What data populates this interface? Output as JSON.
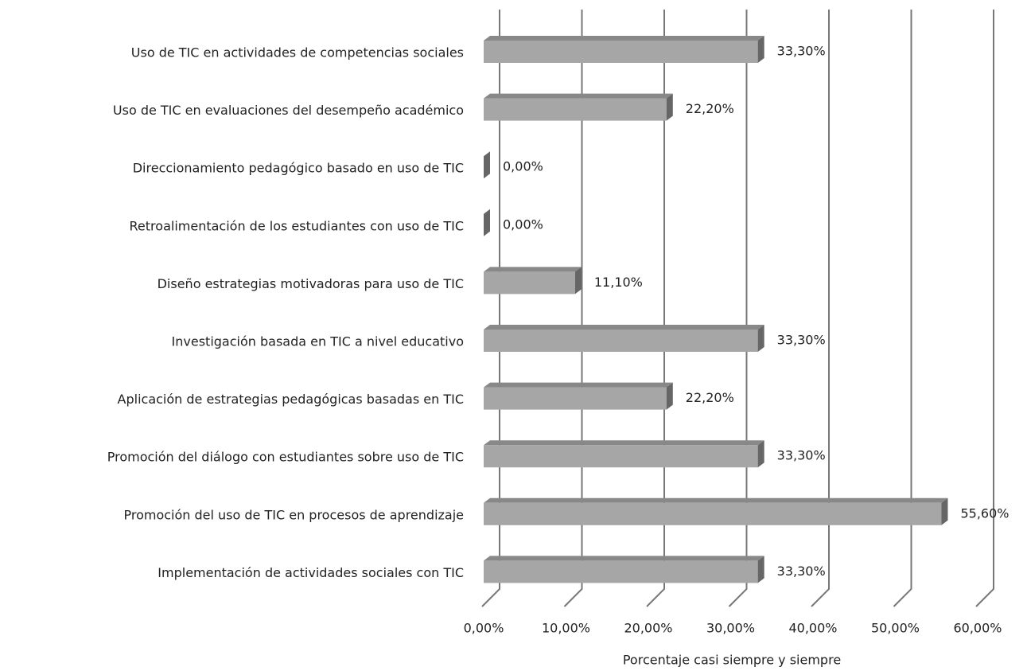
{
  "chart_data": {
    "type": "bar",
    "orientation": "horizontal",
    "categories": [
      "Uso de TIC en actividades de competencias sociales",
      "Uso de TIC en evaluaciones del desempeño académico",
      "Direccionamiento pedagógico basado en uso de TIC",
      "Retroalimentación de los estudiantes con uso de TIC",
      "Diseño estrategias motivadoras para uso de TIC",
      "Investigación basada en TIC a nivel educativo",
      "Aplicación de estrategias pedagógicas basadas en TIC",
      "Promoción del diálogo con estudiantes sobre uso de TIC",
      "Promoción del uso de TIC en procesos de aprendizaje",
      "Implementación de actividades sociales con TIC"
    ],
    "values": [
      33.3,
      22.2,
      0,
      0,
      11.1,
      33.3,
      22.2,
      33.3,
      55.6,
      33.3
    ],
    "value_labels": [
      "33,30%",
      "22,20%",
      "0,00%",
      "0,00%",
      "11,10%",
      "33,30%",
      "22,20%",
      "33,30%",
      "55,60%",
      "33,30%"
    ],
    "color": "#a6a6a6",
    "xlim": [
      0,
      60
    ],
    "xticks": [
      {
        "value": 0,
        "label": "0,00%"
      },
      {
        "value": 10,
        "label": "10,00%"
      },
      {
        "value": 20,
        "label": "20,00%"
      },
      {
        "value": 30,
        "label": "30,00%"
      },
      {
        "value": 40,
        "label": "40,00%"
      },
      {
        "value": 50,
        "label": "50,00%"
      },
      {
        "value": 60,
        "label": "60,00%"
      }
    ],
    "xlabel": "Porcentaje casi siempre y siempre",
    "grid": true
  }
}
